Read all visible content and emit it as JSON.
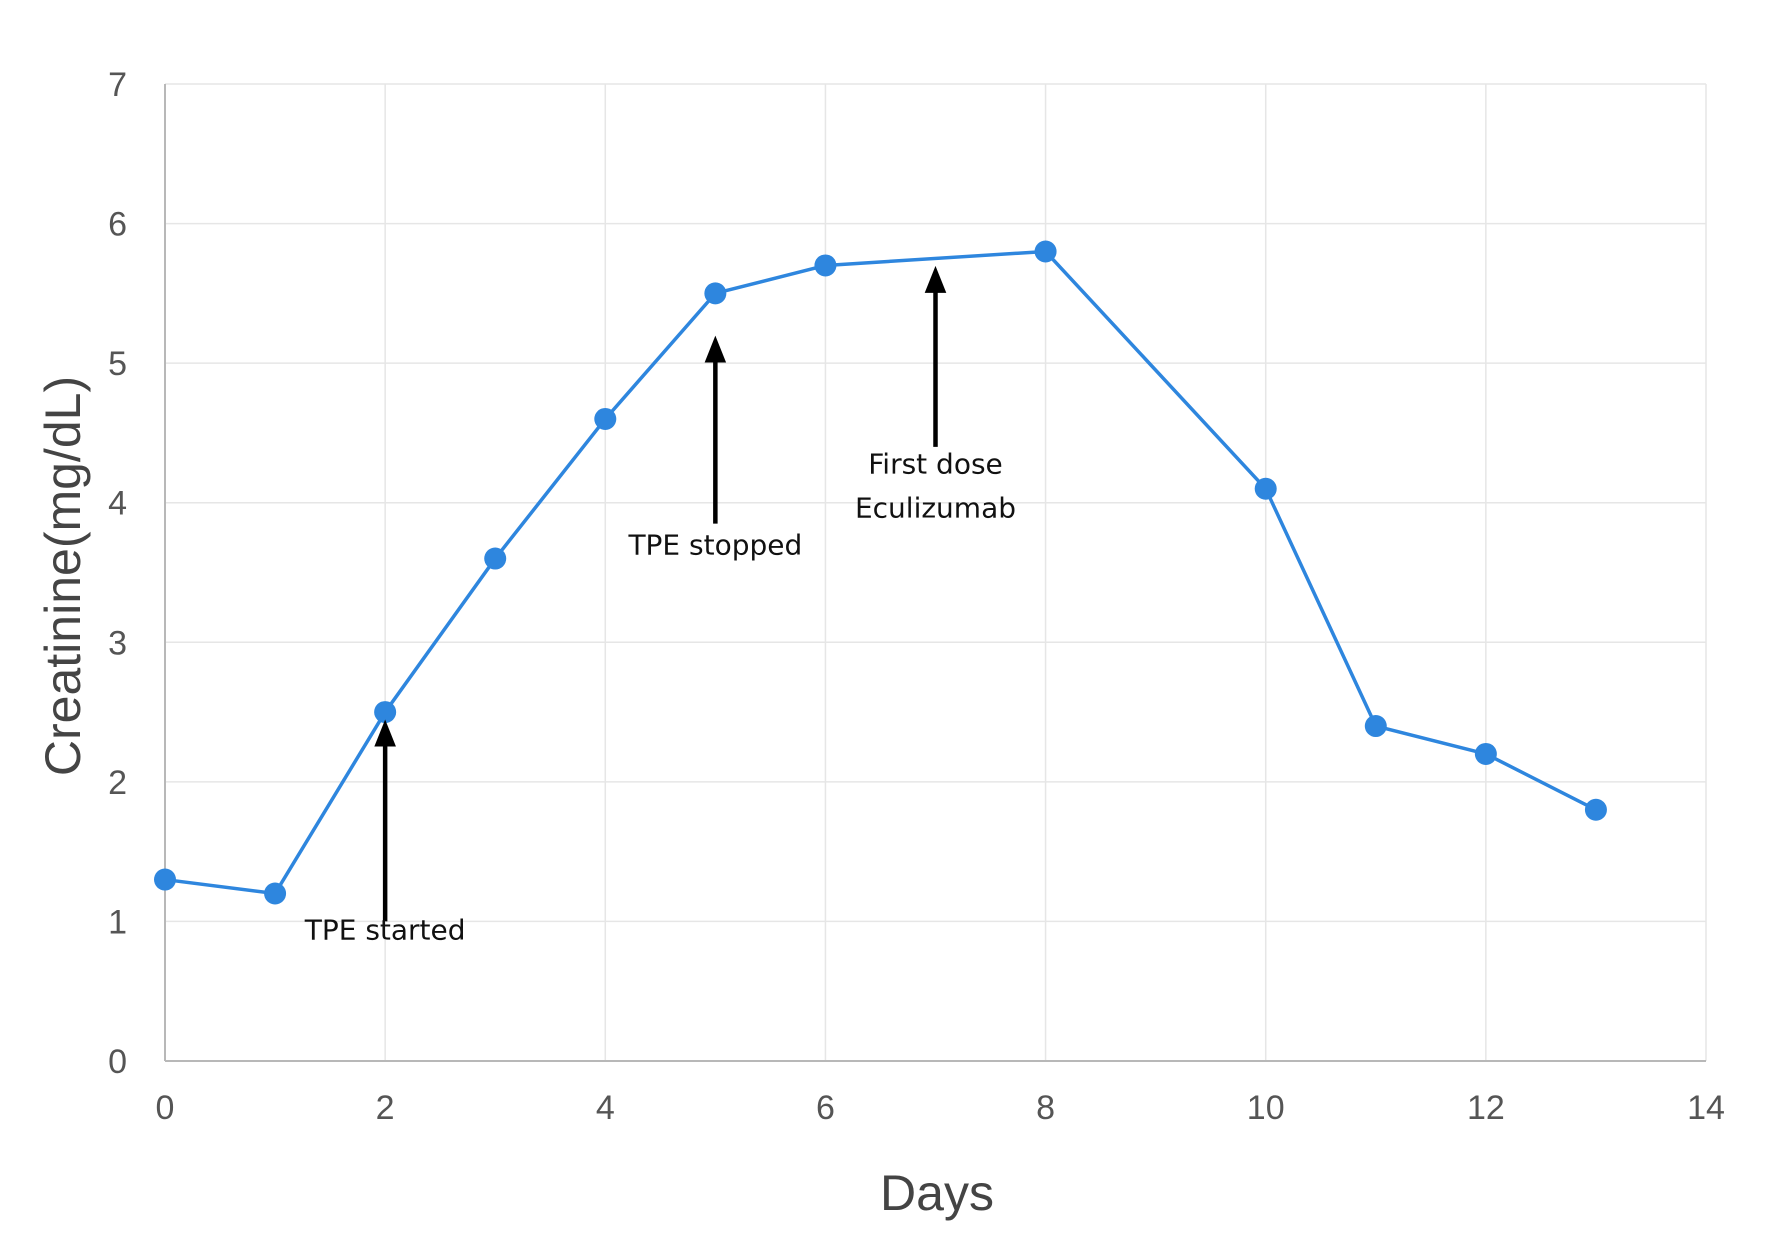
{
  "chart_data": {
    "type": "line",
    "title": "",
    "xlabel": "Days",
    "ylabel": "Creatinine(mg/dL)",
    "xlim": [
      0,
      14
    ],
    "ylim": [
      0,
      7
    ],
    "x_ticks": [
      0,
      2,
      4,
      6,
      8,
      10,
      12,
      14
    ],
    "y_ticks": [
      0,
      1,
      2,
      3,
      4,
      5,
      6,
      7
    ],
    "grid": true,
    "legend": "none",
    "series": [
      {
        "color": "#2E86DE",
        "points": [
          {
            "x": 0,
            "y": 1.3
          },
          {
            "x": 1,
            "y": 1.2
          },
          {
            "x": 2,
            "y": 2.5
          },
          {
            "x": 3,
            "y": 3.6
          },
          {
            "x": 4,
            "y": 4.6
          },
          {
            "x": 5,
            "y": 5.5
          },
          {
            "x": 6,
            "y": 5.7
          },
          {
            "x": 8,
            "y": 5.8
          },
          {
            "x": 10,
            "y": 4.1
          },
          {
            "x": 11,
            "y": 2.4
          },
          {
            "x": 12,
            "y": 2.2
          },
          {
            "x": 13,
            "y": 1.8
          }
        ]
      }
    ],
    "annotations": [
      {
        "lines": [
          "TPE started"
        ],
        "x": 2,
        "arrow_from_y": 1.0,
        "arrow_to_y": 2.35,
        "text_y": 0.87
      },
      {
        "lines": [
          "TPE stopped"
        ],
        "x": 5,
        "arrow_from_y": 3.85,
        "arrow_to_y": 5.1,
        "text_y": 3.63
      },
      {
        "lines": [
          "First dose",
          "Eculizumab"
        ],
        "x": 7,
        "arrow_from_y": 4.4,
        "arrow_to_y": 5.6,
        "text_y": 4.21
      }
    ]
  }
}
